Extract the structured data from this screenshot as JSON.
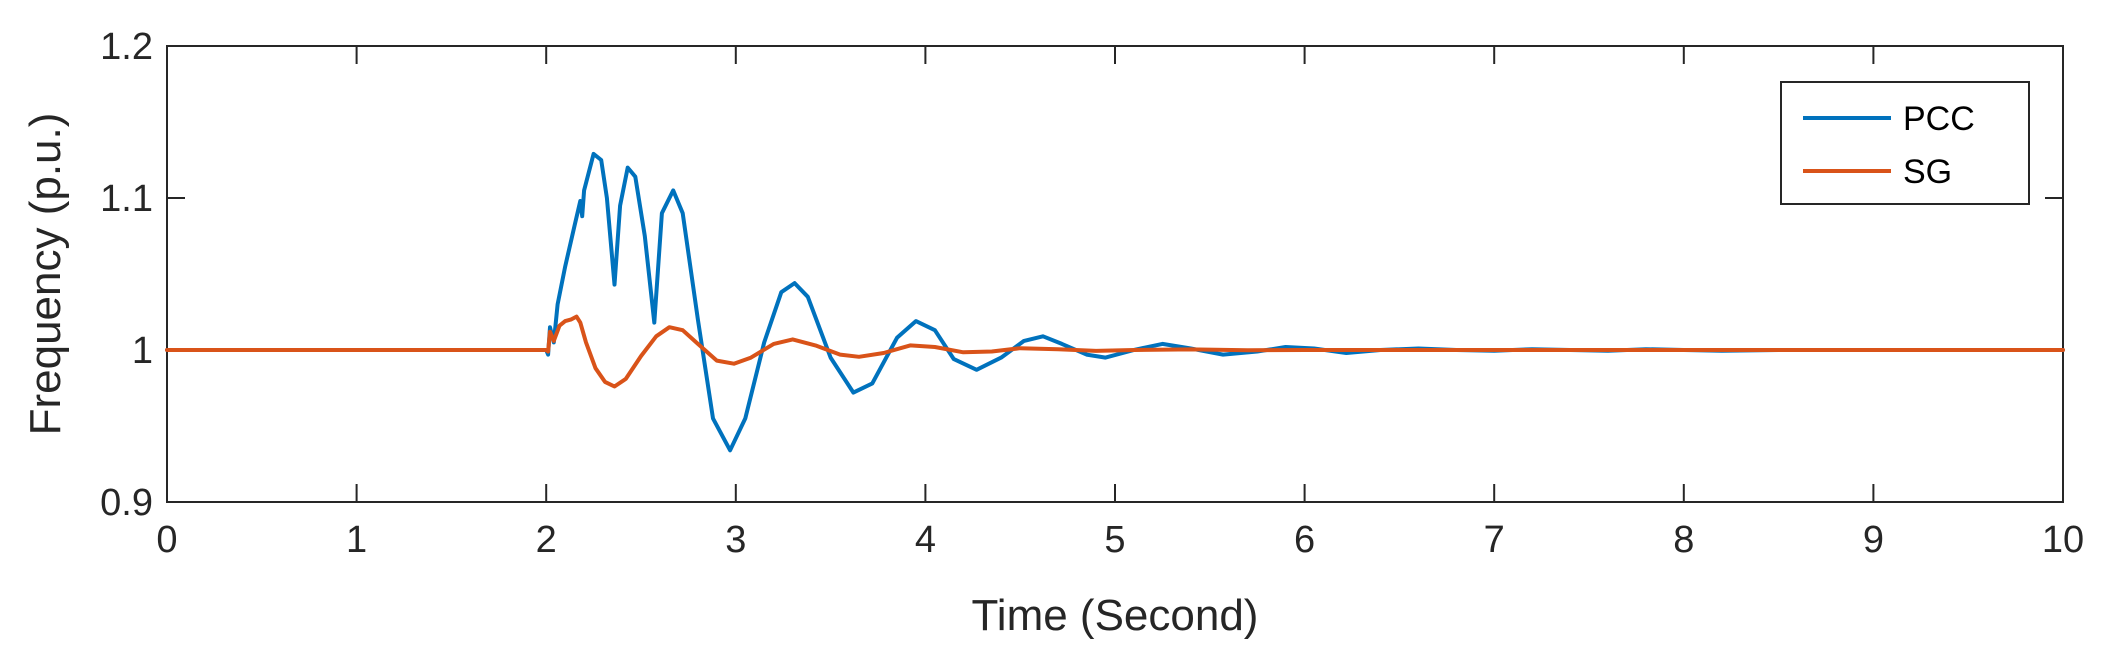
{
  "chart_data": {
    "type": "line",
    "title": "",
    "xlabel": "Time (Second)",
    "ylabel": "Frequency (p.u.)",
    "xlim": [
      0,
      10
    ],
    "ylim": [
      0.9,
      1.2
    ],
    "xticks": [
      "0",
      "1",
      "2",
      "3",
      "4",
      "5",
      "6",
      "7",
      "8",
      "9",
      "10"
    ],
    "yticks": [
      "0.9",
      "1",
      "1.1",
      "1.2"
    ],
    "grid": false,
    "legend_position": "top-right",
    "series": [
      {
        "name": "PCC",
        "color": "#0072BD",
        "points": [
          [
            0,
            1.0
          ],
          [
            2.0,
            1.0
          ],
          [
            2.01,
            0.997
          ],
          [
            2.02,
            1.015
          ],
          [
            2.04,
            1.005
          ],
          [
            2.06,
            1.03
          ],
          [
            2.1,
            1.055
          ],
          [
            2.15,
            1.082
          ],
          [
            2.18,
            1.098
          ],
          [
            2.19,
            1.088
          ],
          [
            2.2,
            1.105
          ],
          [
            2.25,
            1.129
          ],
          [
            2.29,
            1.125
          ],
          [
            2.32,
            1.1
          ],
          [
            2.36,
            1.043
          ],
          [
            2.39,
            1.095
          ],
          [
            2.43,
            1.12
          ],
          [
            2.47,
            1.114
          ],
          [
            2.52,
            1.075
          ],
          [
            2.57,
            1.018
          ],
          [
            2.61,
            1.09
          ],
          [
            2.67,
            1.105
          ],
          [
            2.72,
            1.09
          ],
          [
            2.8,
            1.02
          ],
          [
            2.88,
            0.955
          ],
          [
            2.97,
            0.934
          ],
          [
            3.05,
            0.955
          ],
          [
            3.15,
            1.005
          ],
          [
            3.24,
            1.038
          ],
          [
            3.31,
            1.044
          ],
          [
            3.38,
            1.035
          ],
          [
            3.5,
            0.995
          ],
          [
            3.62,
            0.972
          ],
          [
            3.72,
            0.978
          ],
          [
            3.85,
            1.008
          ],
          [
            3.95,
            1.019
          ],
          [
            4.05,
            1.013
          ],
          [
            4.15,
            0.994
          ],
          [
            4.27,
            0.987
          ],
          [
            4.4,
            0.995
          ],
          [
            4.52,
            1.006
          ],
          [
            4.62,
            1.009
          ],
          [
            4.72,
            1.004
          ],
          [
            4.85,
            0.997
          ],
          [
            4.95,
            0.995
          ],
          [
            5.1,
            1.0
          ],
          [
            5.25,
            1.004
          ],
          [
            5.4,
            1.001
          ],
          [
            5.57,
            0.997
          ],
          [
            5.75,
            0.999
          ],
          [
            5.9,
            1.002
          ],
          [
            6.05,
            1.001
          ],
          [
            6.22,
            0.998
          ],
          [
            6.4,
            1.0
          ],
          [
            6.6,
            1.001
          ],
          [
            6.8,
            1.0
          ],
          [
            7.0,
            0.9995
          ],
          [
            7.2,
            1.0005
          ],
          [
            7.4,
            1.0
          ],
          [
            7.6,
            0.9995
          ],
          [
            7.8,
            1.0005
          ],
          [
            8.0,
            1.0
          ],
          [
            8.2,
            0.9995
          ],
          [
            8.5,
            1.0
          ],
          [
            10,
            1.0
          ]
        ]
      },
      {
        "name": "SG",
        "color": "#D95319",
        "points": [
          [
            0,
            1.0
          ],
          [
            2.0,
            1.0
          ],
          [
            2.01,
            0.999
          ],
          [
            2.02,
            1.012
          ],
          [
            2.04,
            1.006
          ],
          [
            2.07,
            1.016
          ],
          [
            2.1,
            1.019
          ],
          [
            2.13,
            1.02
          ],
          [
            2.16,
            1.022
          ],
          [
            2.18,
            1.018
          ],
          [
            2.21,
            1.005
          ],
          [
            2.26,
            0.988
          ],
          [
            2.31,
            0.979
          ],
          [
            2.36,
            0.976
          ],
          [
            2.42,
            0.981
          ],
          [
            2.5,
            0.996
          ],
          [
            2.58,
            1.009
          ],
          [
            2.65,
            1.015
          ],
          [
            2.72,
            1.013
          ],
          [
            2.8,
            1.004
          ],
          [
            2.9,
            0.993
          ],
          [
            2.99,
            0.991
          ],
          [
            3.08,
            0.995
          ],
          [
            3.2,
            1.004
          ],
          [
            3.3,
            1.007
          ],
          [
            3.42,
            1.003
          ],
          [
            3.55,
            0.997
          ],
          [
            3.65,
            0.9955
          ],
          [
            3.78,
            0.998
          ],
          [
            3.92,
            1.003
          ],
          [
            4.05,
            1.002
          ],
          [
            4.2,
            0.9985
          ],
          [
            4.35,
            0.999
          ],
          [
            4.5,
            1.0012
          ],
          [
            4.7,
            1.0005
          ],
          [
            4.9,
            0.9994
          ],
          [
            5.1,
            1.0
          ],
          [
            5.4,
            1.0004
          ],
          [
            5.7,
            0.9998
          ],
          [
            6.0,
            1.0
          ],
          [
            10,
            1.0
          ]
        ]
      }
    ]
  }
}
